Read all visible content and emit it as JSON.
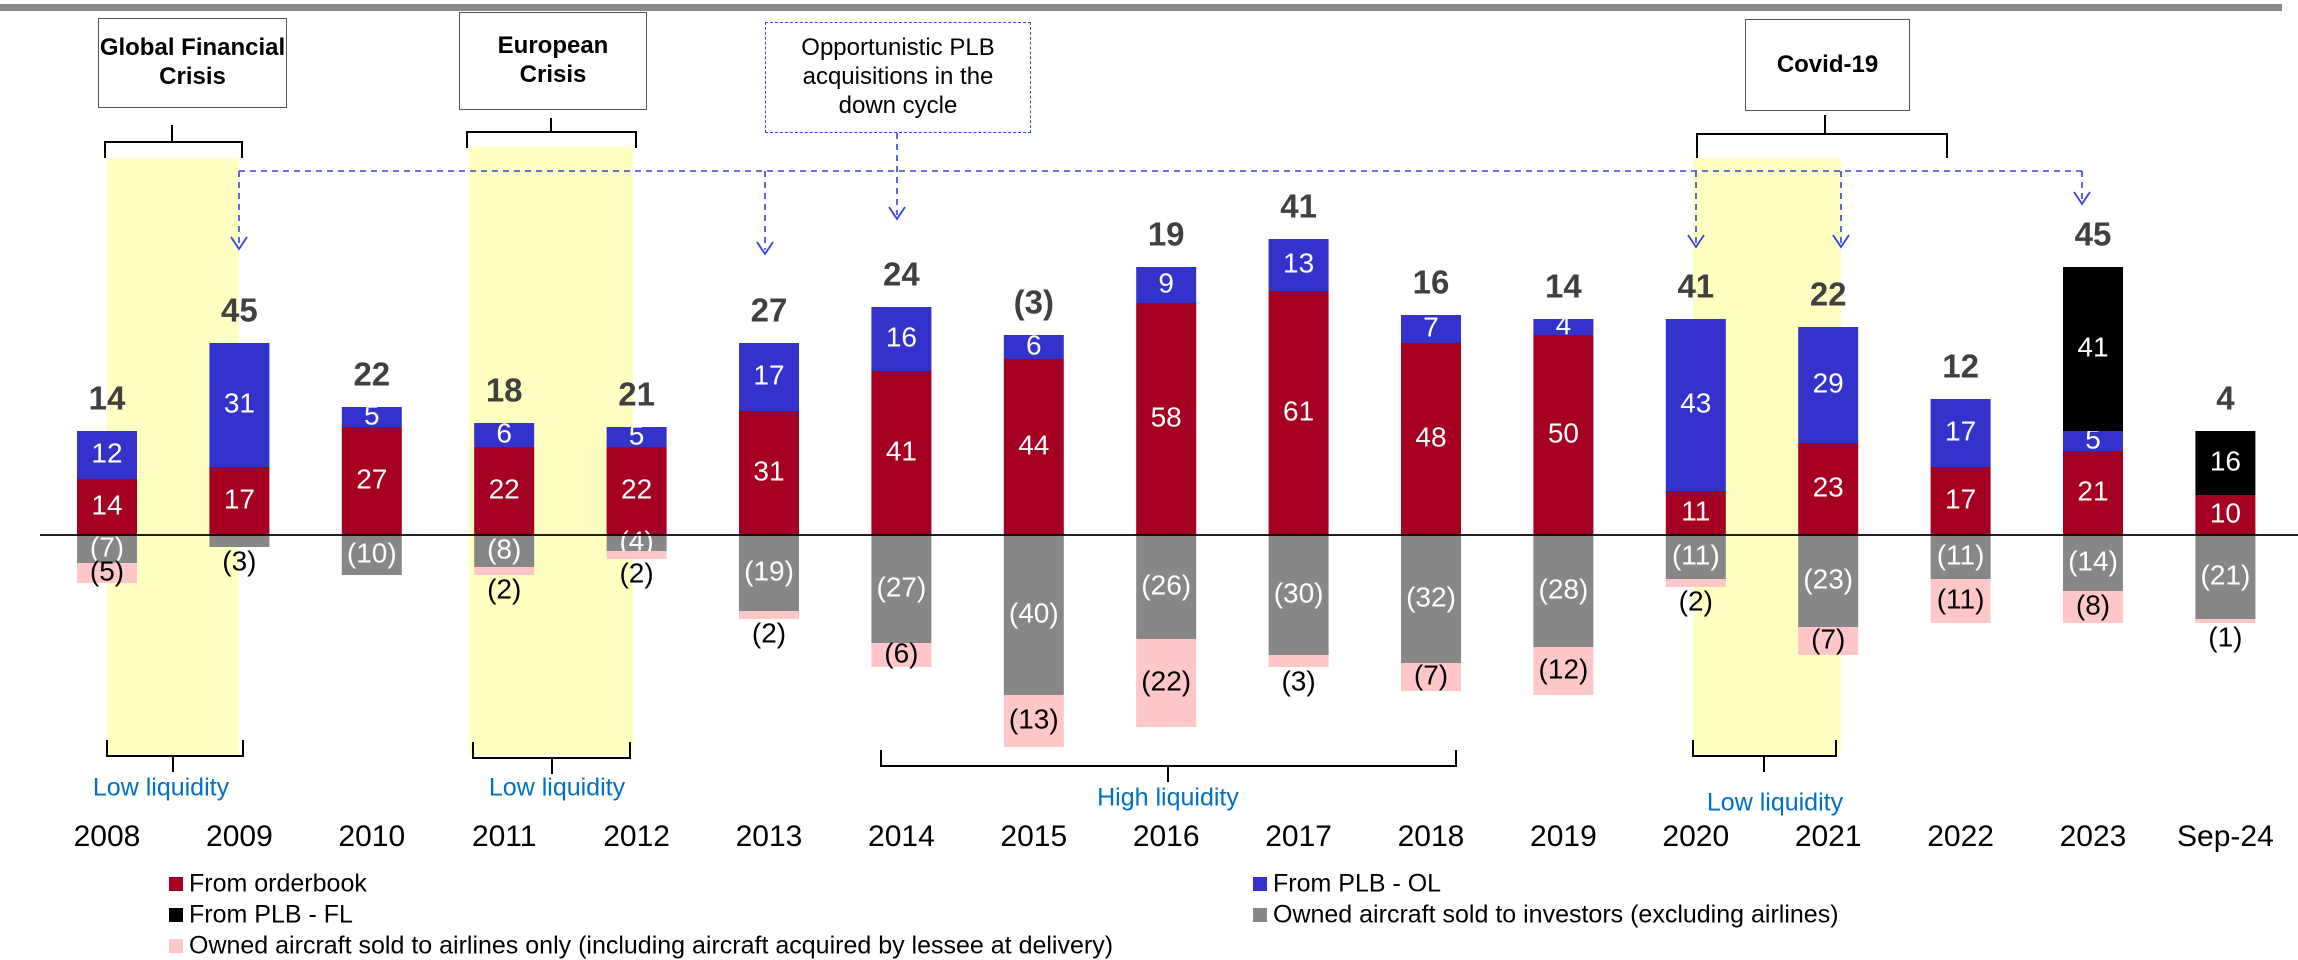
{
  "chart_data": {
    "type": "bar",
    "stacked": true,
    "categories": [
      "2008",
      "2009",
      "2010",
      "2011",
      "2012",
      "2013",
      "2014",
      "2015",
      "2016",
      "2017",
      "2018",
      "2019",
      "2020",
      "2021",
      "2022",
      "2023",
      "Sep-24"
    ],
    "series": [
      {
        "name": "From orderbook",
        "color": "#a50021",
        "values": [
          14,
          17,
          27,
          22,
          22,
          31,
          41,
          44,
          58,
          61,
          48,
          50,
          11,
          23,
          17,
          21,
          10
        ]
      },
      {
        "name": "From PLB - OL",
        "color": "#3333cc",
        "values": [
          12,
          31,
          5,
          6,
          5,
          17,
          16,
          6,
          9,
          13,
          7,
          4,
          43,
          29,
          17,
          5,
          null
        ]
      },
      {
        "name": "From PLB - FL",
        "color": "#000000",
        "values": [
          null,
          null,
          null,
          null,
          null,
          null,
          null,
          null,
          null,
          null,
          null,
          null,
          null,
          null,
          null,
          41,
          16
        ]
      },
      {
        "name": "Owned aircraft sold to investors (excluding airlines)",
        "color": "#878787",
        "values": [
          -7,
          -3,
          -10,
          -8,
          -4,
          -19,
          -27,
          -40,
          -26,
          -30,
          -32,
          -28,
          -11,
          -23,
          -11,
          -14,
          -21
        ],
        "value_labels": [
          "(7)",
          "(3)",
          "(10)",
          "(8)",
          "(4)",
          "(19)",
          "(27)",
          "(40)",
          "(26)",
          "(30)",
          "(32)",
          "(28)",
          "(11)",
          "(23)",
          "(11)",
          "(14)",
          "(21)"
        ]
      },
      {
        "name": "Owned aircraft sold to airlines only (including aircraft acquired by lessee at delivery)",
        "color": "#ffc7c7",
        "values": [
          -5,
          null,
          null,
          -2,
          -2,
          -2,
          -6,
          -13,
          -22,
          -3,
          -7,
          -12,
          -2,
          -7,
          -11,
          -8,
          -1
        ],
        "value_labels": [
          "(5)",
          null,
          null,
          "(2)",
          "(2)",
          "(2)",
          "(6)",
          "(13)",
          "(22)",
          "(3)",
          "(7)",
          "(12)",
          "(2)",
          "(7)",
          "(11)",
          "(8)",
          "(1)"
        ]
      }
    ],
    "totals": {
      "values": [
        14,
        45,
        22,
        18,
        21,
        27,
        24,
        -3,
        19,
        41,
        16,
        14,
        41,
        22,
        12,
        45,
        4
      ],
      "value_labels": [
        "14",
        "45",
        "22",
        "18",
        "21",
        "27",
        "24",
        "(3)",
        "19",
        "41",
        "16",
        "14",
        "41",
        "22",
        "12",
        "45",
        "4"
      ]
    },
    "annotations": [
      "Global Financial Crisis",
      "European Crisis",
      "Opportunistic PLB acquisitions in the down cycle",
      "Covid-19"
    ],
    "liquidity_labels": [
      "Low liquidity",
      "Low liquidity",
      "High liquidity",
      "Low liquidity"
    ]
  }
}
